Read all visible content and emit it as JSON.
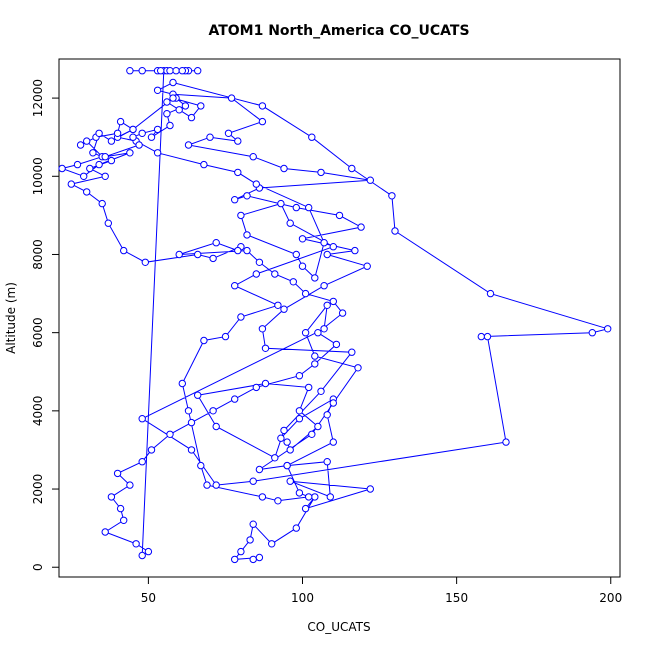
{
  "chart_data": {
    "type": "line",
    "title": "ATOM1 North_America CO_UCATS",
    "xlabel": "CO_UCATS",
    "ylabel": "Altitude (m)",
    "xlim": [
      21,
      203
    ],
    "ylim": [
      -250,
      13000
    ],
    "x_ticks": [
      50,
      100,
      150,
      200
    ],
    "y_ticks": [
      0,
      2000,
      4000,
      6000,
      8000,
      10000,
      12000
    ],
    "grid": false,
    "legend": "none",
    "markers": "open-circle",
    "color": "#0000ff",
    "series": [
      {
        "x": [
          84,
          86,
          78,
          80,
          83,
          84,
          90,
          98,
          104,
          101,
          122,
          96,
          109,
          108,
          95,
          110,
          108,
          110,
          99,
          93,
          95,
          96,
          105,
          99,
          102,
          88,
          66,
          72,
          91,
          94,
          106,
          116,
          88,
          87,
          94,
          107,
          121,
          108,
          117,
          100,
          119,
          112,
          98,
          82,
          78,
          86,
          122,
          106,
          94,
          84,
          63,
          70,
          79,
          76,
          87,
          77,
          58,
          53,
          58,
          87,
          103,
          116,
          129,
          130,
          161,
          199,
          194,
          158,
          160,
          166,
          84,
          72,
          64,
          48,
          107,
          108,
          101,
          104,
          118,
          110,
          103,
          86,
          95,
          99,
          102,
          92,
          87,
          69,
          67,
          63,
          61,
          68,
          75,
          80,
          92,
          78,
          85,
          110,
          96,
          93,
          80,
          82,
          98,
          100,
          104,
          107,
          102,
          85,
          79,
          68,
          53,
          46,
          40,
          45,
          41,
          40,
          33,
          28,
          30,
          35,
          27,
          22,
          29,
          34,
          44,
          36,
          47,
          45,
          48,
          53,
          51,
          57,
          56,
          62,
          59,
          56,
          60,
          64,
          67,
          58,
          45,
          38,
          34,
          32,
          38,
          31,
          36,
          25,
          30,
          35,
          37,
          42,
          49,
          66,
          71,
          80,
          79,
          72,
          60,
          82,
          86,
          91,
          97,
          101,
          110,
          113,
          105,
          111,
          104,
          99,
          85,
          78,
          71,
          64,
          57,
          51,
          48,
          40,
          44,
          38,
          41,
          42,
          36,
          46,
          50,
          48,
          55,
          56,
          57,
          53,
          63,
          62,
          59,
          61,
          66,
          44,
          48,
          54
        ],
        "y": [
          200,
          250,
          200,
          400,
          700,
          1100,
          600,
          1000,
          1800,
          1500,
          2000,
          2200,
          1800,
          2700,
          2600,
          3200,
          3900,
          4300,
          3800,
          3300,
          3200,
          3000,
          3600,
          4000,
          4600,
          4700,
          4400,
          3600,
          2800,
          3500,
          4500,
          5500,
          5600,
          6100,
          6600,
          7200,
          7700,
          8000,
          8100,
          8400,
          8700,
          9000,
          9200,
          9500,
          9400,
          9700,
          9900,
          10100,
          10200,
          10500,
          10800,
          11000,
          10900,
          11100,
          11400,
          12000,
          12100,
          12200,
          12400,
          11800,
          11000,
          10200,
          9500,
          8600,
          7000,
          6100,
          6000,
          5900,
          5900,
          3200,
          2200,
          2100,
          3000,
          3800,
          6100,
          6700,
          6000,
          5400,
          5100,
          4200,
          3400,
          2500,
          2600,
          1900,
          1800,
          1700,
          1800,
          2100,
          2600,
          4000,
          4700,
          5800,
          5900,
          6400,
          6700,
          7200,
          7500,
          8200,
          8800,
          9300,
          9000,
          8500,
          8000,
          7700,
          7400,
          8300,
          9200,
          9800,
          10100,
          10300,
          10600,
          10900,
          11000,
          11200,
          11400,
          11100,
          11000,
          10800,
          10900,
          10500,
          10300,
          10200,
          10000,
          10300,
          10600,
          10500,
          10800,
          11000,
          11100,
          11200,
          11000,
          11300,
          11600,
          11800,
          12000,
          11900,
          11700,
          11500,
          11800,
          12000,
          11200,
          10900,
          11100,
          10600,
          10400,
          10200,
          10000,
          9800,
          9600,
          9300,
          8800,
          8100,
          7800,
          8000,
          7900,
          8200,
          8100,
          8300,
          8000,
          8100,
          7800,
          7500,
          7300,
          7000,
          6800,
          6500,
          6000,
          5700,
          5200,
          4900,
          4600,
          4300,
          4000,
          3700,
          3400,
          3000,
          2700,
          2400,
          2100,
          1800,
          1500,
          1200,
          900,
          600,
          400,
          300,
          12700,
          12700,
          12700,
          12700,
          12700,
          12700,
          12700,
          12700,
          12700,
          12700,
          12700,
          12700
        ]
      }
    ]
  }
}
